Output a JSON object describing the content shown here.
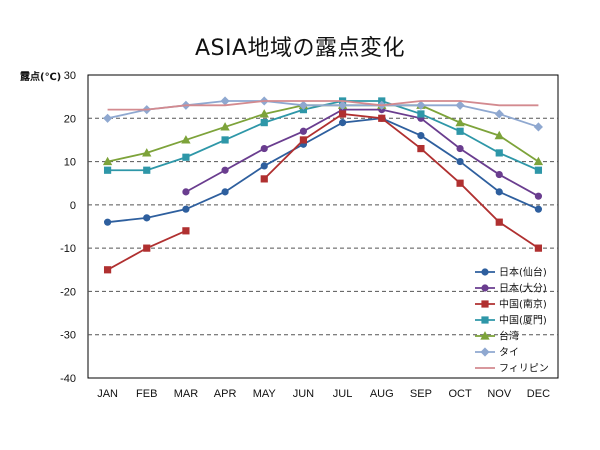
{
  "chart_data": {
    "type": "line",
    "title": "ASIA地域の露点変化",
    "ylabel": "露点(℃)",
    "xlabel": "",
    "ylim": [
      -40,
      30
    ],
    "yticks": [
      30,
      20,
      10,
      0,
      -10,
      -20,
      -30,
      -40
    ],
    "grid": "horizontal-dashed",
    "legend_position": "bottom-right",
    "categories": [
      "JAN",
      "FEB",
      "MAR",
      "APR",
      "MAY",
      "JUN",
      "JUL",
      "AUG",
      "SEP",
      "OCT",
      "NOV",
      "DEC"
    ],
    "series": [
      {
        "name": "日本(仙台)",
        "color": "#2e5f9e",
        "marker": "circle",
        "values": [
          -4,
          -3,
          -1,
          3,
          9,
          14,
          19,
          20,
          16,
          10,
          3,
          -1
        ]
      },
      {
        "name": "日本(大分)",
        "color": "#6a3d8f",
        "marker": "circle",
        "values": [
          null,
          null,
          3,
          8,
          13,
          17,
          22,
          22,
          20,
          13,
          7,
          2
        ]
      },
      {
        "name": "中国(南京)",
        "color": "#b03030",
        "marker": "square",
        "values": [
          -15,
          -10,
          -6,
          null,
          6,
          15,
          21,
          20,
          13,
          5,
          -4,
          -10
        ]
      },
      {
        "name": "中国(厦門)",
        "color": "#2e97a8",
        "marker": "square",
        "values": [
          8,
          8,
          11,
          15,
          19,
          22,
          24,
          24,
          21,
          17,
          12,
          8
        ]
      },
      {
        "name": "台湾",
        "color": "#7da33a",
        "marker": "triangle",
        "values": [
          10,
          12,
          15,
          18,
          21,
          23,
          23,
          23,
          23,
          19,
          16,
          10
        ]
      },
      {
        "name": "タイ",
        "color": "#8fa8d0",
        "marker": "diamond",
        "values": [
          20,
          22,
          23,
          24,
          24,
          23,
          23,
          23,
          23,
          23,
          21,
          18
        ]
      },
      {
        "name": "フィリピン",
        "color": "#d38a8f",
        "marker": "none",
        "values": [
          22,
          22,
          23,
          23,
          24,
          24,
          24,
          23,
          24,
          24,
          23,
          23
        ]
      }
    ]
  }
}
